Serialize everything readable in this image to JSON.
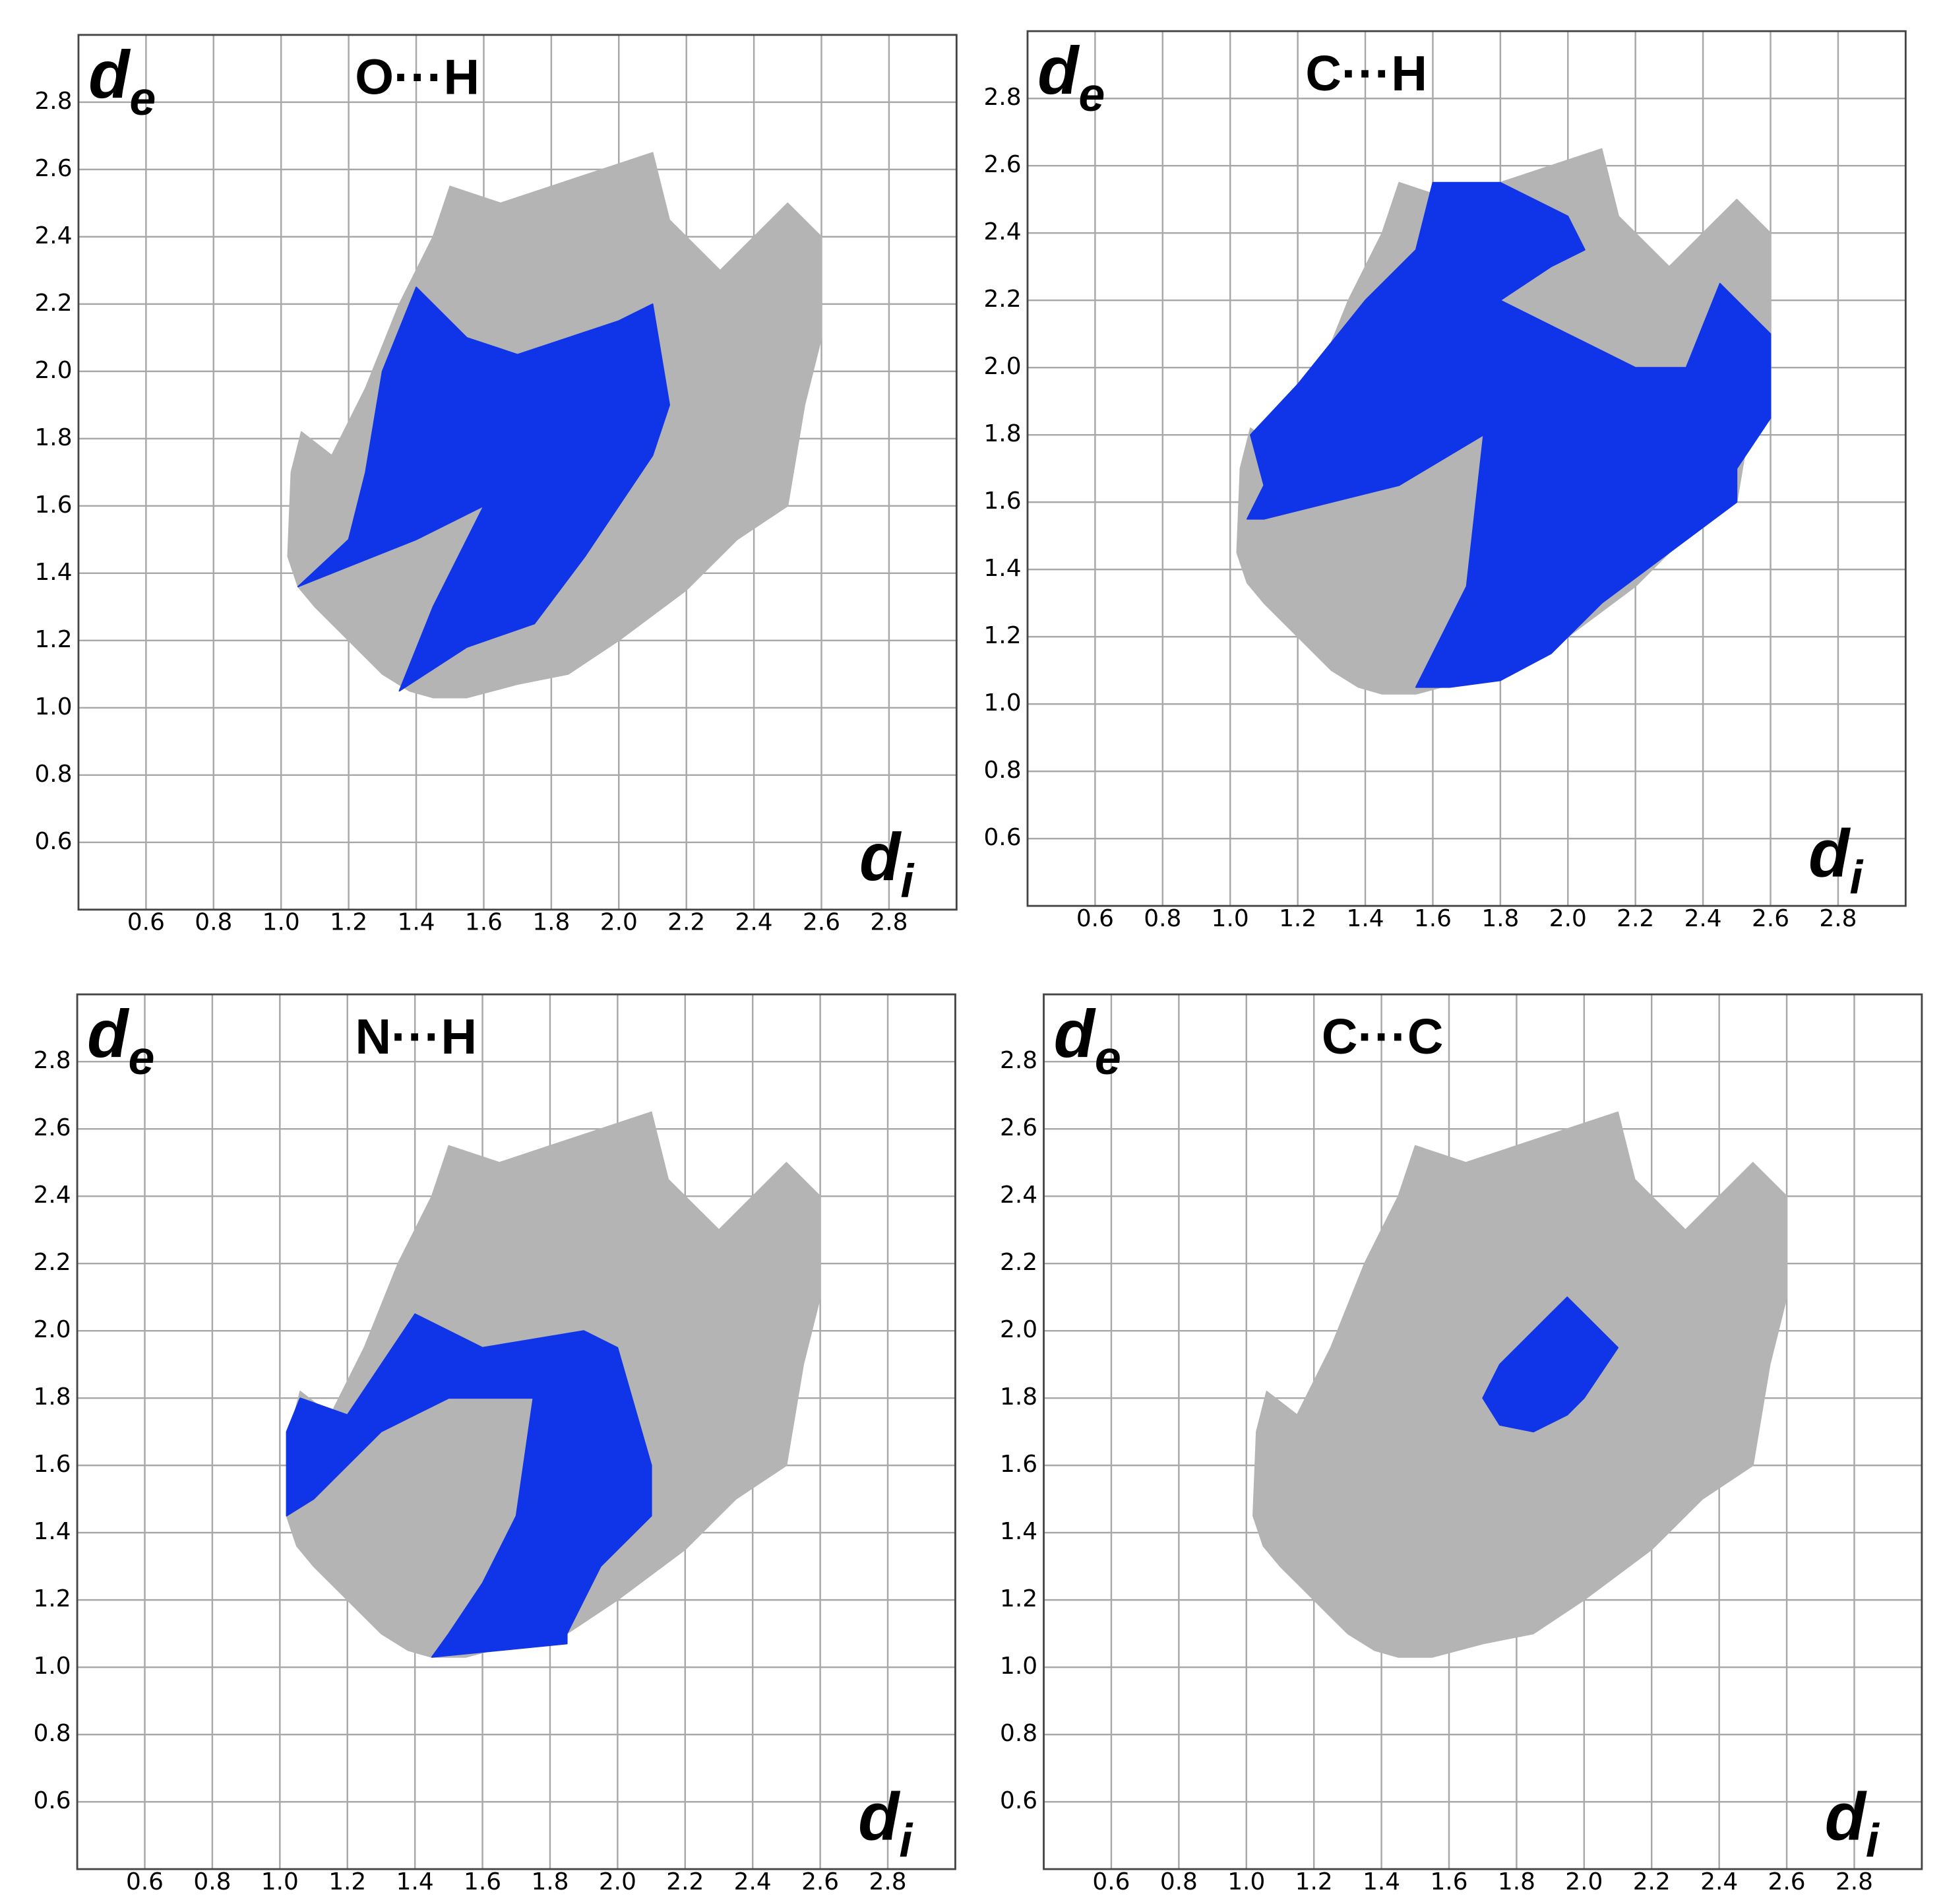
{
  "chart_data": [
    {
      "type": "area",
      "title": "O···H",
      "xlabel": "d",
      "xlabel_sub": "i",
      "ylabel": "d",
      "ylabel_sub": "e",
      "xlim": [
        0.4,
        3.0
      ],
      "ylim": [
        0.4,
        3.0
      ],
      "grid": true,
      "xticks": [
        0.6,
        0.8,
        {
          "value": 1,
          "label": "1.0"
        },
        1.2,
        1.4,
        1.6,
        1.8,
        {
          "value": 2,
          "label": "2.0"
        },
        2.2,
        2.4,
        2.6,
        2.8
      ],
      "yticks": [
        0.6,
        0.8,
        {
          "value": 1,
          "label": "1.0"
        },
        1.2,
        1.4,
        1.6,
        1.8,
        {
          "value": 2,
          "label": "2.0"
        },
        2.2,
        2.4,
        2.6,
        2.8
      ],
      "series": [
        {
          "color": "#b4b4b4",
          "x": [
            1.05,
            1.02,
            1.03,
            1.06,
            1.15,
            1.25,
            1.35,
            1.45,
            1.5,
            1.65,
            1.8,
            1.95,
            2.1,
            2.15,
            2.3,
            2.4,
            2.5,
            2.6,
            2.6,
            2.55,
            2.5,
            2.35,
            2.2,
            2.0,
            1.85,
            1.7,
            1.55,
            1.45,
            1.38,
            1.3,
            1.2,
            1.1
          ],
          "values": [
            1.36,
            1.45,
            1.7,
            1.82,
            1.75,
            1.95,
            2.2,
            2.4,
            2.55,
            2.5,
            2.55,
            2.6,
            2.65,
            2.45,
            2.3,
            2.4,
            2.5,
            2.4,
            2.1,
            1.9,
            1.6,
            1.5,
            1.35,
            1.2,
            1.1,
            1.07,
            1.03,
            1.03,
            1.05,
            1.1,
            1.2,
            1.3
          ]
        },
        {
          "color": "#1034e8",
          "x": [
            1.05,
            1.2,
            1.25,
            1.3,
            1.4,
            1.55,
            1.7,
            1.85,
            2.0,
            2.1,
            2.15,
            2.1,
            2.0,
            1.9,
            1.75,
            1.55,
            1.35,
            1.45,
            1.6,
            1.4
          ],
          "values": [
            1.36,
            1.5,
            1.7,
            2.0,
            2.25,
            2.1,
            2.05,
            2.1,
            2.15,
            2.2,
            1.9,
            1.75,
            1.6,
            1.45,
            1.25,
            1.18,
            1.05,
            1.3,
            1.6,
            1.5
          ]
        }
      ]
    },
    {
      "type": "area",
      "title": "C···H",
      "xlabel": "d",
      "xlabel_sub": "i",
      "ylabel": "d",
      "ylabel_sub": "e",
      "xlim": [
        0.4,
        3.0
      ],
      "ylim": [
        0.4,
        3.0
      ],
      "grid": true,
      "xticks": [
        0.6,
        0.8,
        {
          "value": 1,
          "label": "1.0"
        },
        1.2,
        1.4,
        1.6,
        1.8,
        {
          "value": 2,
          "label": "2.0"
        },
        2.2,
        2.4,
        2.6,
        2.8
      ],
      "yticks": [
        0.6,
        0.8,
        {
          "value": 1,
          "label": "1.0"
        },
        1.2,
        1.4,
        1.6,
        1.8,
        {
          "value": 2,
          "label": "2.0"
        },
        2.2,
        2.4,
        2.6,
        2.8
      ],
      "series": [
        {
          "color": "#b4b4b4",
          "x": [
            1.05,
            1.02,
            1.03,
            1.06,
            1.15,
            1.25,
            1.35,
            1.45,
            1.5,
            1.65,
            1.8,
            1.95,
            2.1,
            2.15,
            2.3,
            2.4,
            2.5,
            2.6,
            2.6,
            2.55,
            2.5,
            2.35,
            2.2,
            2.0,
            1.85,
            1.7,
            1.55,
            1.45,
            1.38,
            1.3,
            1.2,
            1.1
          ],
          "values": [
            1.36,
            1.45,
            1.7,
            1.82,
            1.75,
            1.95,
            2.2,
            2.4,
            2.55,
            2.5,
            2.55,
            2.6,
            2.65,
            2.45,
            2.3,
            2.4,
            2.5,
            2.4,
            2.1,
            1.9,
            1.6,
            1.5,
            1.35,
            1.2,
            1.1,
            1.07,
            1.03,
            1.03,
            1.05,
            1.1,
            1.2,
            1.3
          ]
        },
        {
          "color": "#1034e8",
          "x": [
            1.05,
            1.1,
            1.06,
            1.2,
            1.4,
            1.55,
            1.6,
            1.8,
            2.0,
            2.05,
            1.95,
            1.8,
            2.0,
            2.2,
            2.35,
            2.45,
            2.6,
            2.6,
            2.5,
            2.5,
            2.3,
            2.1,
            1.95,
            1.8,
            1.65,
            1.55,
            1.7,
            1.75,
            1.5,
            1.3,
            1.1
          ],
          "values": [
            1.55,
            1.65,
            1.8,
            1.95,
            2.2,
            2.35,
            2.55,
            2.55,
            2.45,
            2.35,
            2.3,
            2.2,
            2.1,
            2.0,
            2.0,
            2.25,
            2.1,
            1.85,
            1.7,
            1.6,
            1.45,
            1.3,
            1.15,
            1.07,
            1.05,
            1.05,
            1.35,
            1.8,
            1.65,
            1.6,
            1.55
          ]
        }
      ]
    },
    {
      "type": "area",
      "title": "N···H",
      "xlabel": "d",
      "xlabel_sub": "i",
      "ylabel": "d",
      "ylabel_sub": "e",
      "xlim": [
        0.4,
        3.0
      ],
      "ylim": [
        0.4,
        3.0
      ],
      "grid": true,
      "xticks": [
        0.6,
        0.8,
        {
          "value": 1,
          "label": "1.0"
        },
        1.2,
        1.4,
        1.6,
        1.8,
        {
          "value": 2,
          "label": "2.0"
        },
        2.2,
        2.4,
        2.6,
        2.8
      ],
      "yticks": [
        0.6,
        0.8,
        {
          "value": 1,
          "label": "1.0"
        },
        1.2,
        1.4,
        1.6,
        1.8,
        {
          "value": 2,
          "label": "2.0"
        },
        2.2,
        2.4,
        2.6,
        2.8
      ],
      "series": [
        {
          "color": "#b4b4b4",
          "x": [
            1.05,
            1.02,
            1.03,
            1.06,
            1.15,
            1.25,
            1.35,
            1.45,
            1.5,
            1.65,
            1.8,
            1.95,
            2.1,
            2.15,
            2.3,
            2.4,
            2.5,
            2.6,
            2.6,
            2.55,
            2.5,
            2.35,
            2.2,
            2.0,
            1.85,
            1.7,
            1.55,
            1.45,
            1.38,
            1.3,
            1.2,
            1.1
          ],
          "values": [
            1.36,
            1.45,
            1.7,
            1.82,
            1.75,
            1.95,
            2.2,
            2.4,
            2.55,
            2.5,
            2.55,
            2.6,
            2.65,
            2.45,
            2.3,
            2.4,
            2.5,
            2.4,
            2.1,
            1.9,
            1.6,
            1.5,
            1.35,
            1.2,
            1.1,
            1.07,
            1.03,
            1.03,
            1.05,
            1.1,
            1.2,
            1.3
          ]
        },
        {
          "color": "#1034e8",
          "x": [
            1.02,
            1.02,
            1.06,
            1.2,
            1.4,
            1.6,
            1.9,
            2.0,
            2.1,
            2.1,
            1.95,
            1.85,
            1.85,
            1.45,
            1.5,
            1.6,
            1.7,
            1.75,
            1.5,
            1.3,
            1.1
          ],
          "values": [
            1.45,
            1.7,
            1.8,
            1.75,
            2.05,
            1.95,
            2.0,
            1.95,
            1.6,
            1.45,
            1.3,
            1.1,
            1.07,
            1.03,
            1.1,
            1.25,
            1.45,
            1.8,
            1.8,
            1.7,
            1.5
          ]
        }
      ]
    },
    {
      "type": "area",
      "title": "C···C",
      "xlabel": "d",
      "xlabel_sub": "i",
      "ylabel": "d",
      "ylabel_sub": "e",
      "xlim": [
        0.4,
        3.0
      ],
      "ylim": [
        0.4,
        3.0
      ],
      "grid": true,
      "xticks": [
        0.6,
        0.8,
        {
          "value": 1,
          "label": "1.0"
        },
        1.2,
        1.4,
        1.6,
        1.8,
        {
          "value": 2,
          "label": "2.0"
        },
        2.2,
        2.4,
        2.6,
        2.8
      ],
      "yticks": [
        0.6,
        0.8,
        {
          "value": 1,
          "label": "1.0"
        },
        1.2,
        1.4,
        1.6,
        1.8,
        {
          "value": 2,
          "label": "2.0"
        },
        2.2,
        2.4,
        2.6,
        2.8
      ],
      "series": [
        {
          "color": "#b4b4b4",
          "x": [
            1.05,
            1.02,
            1.03,
            1.06,
            1.15,
            1.25,
            1.35,
            1.45,
            1.5,
            1.65,
            1.8,
            1.95,
            2.1,
            2.15,
            2.3,
            2.4,
            2.5,
            2.6,
            2.6,
            2.55,
            2.5,
            2.35,
            2.2,
            2.0,
            1.85,
            1.7,
            1.55,
            1.45,
            1.38,
            1.3,
            1.2,
            1.1
          ],
          "values": [
            1.36,
            1.45,
            1.7,
            1.82,
            1.75,
            1.95,
            2.2,
            2.4,
            2.55,
            2.5,
            2.55,
            2.6,
            2.65,
            2.45,
            2.3,
            2.4,
            2.5,
            2.4,
            2.1,
            1.9,
            1.6,
            1.5,
            1.35,
            1.2,
            1.1,
            1.07,
            1.03,
            1.03,
            1.05,
            1.1,
            1.2,
            1.3
          ]
        },
        {
          "color": "#1034e8",
          "x": [
            1.7,
            1.75,
            1.9,
            1.95,
            2.1,
            2.0,
            1.95,
            1.85,
            1.75
          ],
          "values": [
            1.8,
            1.9,
            2.05,
            2.1,
            1.95,
            1.8,
            1.75,
            1.7,
            1.72
          ]
        }
      ]
    }
  ]
}
